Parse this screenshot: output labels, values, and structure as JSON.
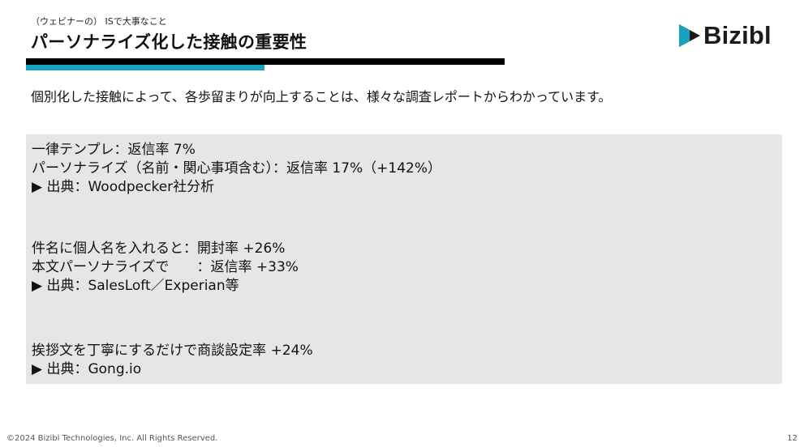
{
  "header": {
    "eyebrow": "（ウェビナーの） ISで大事なこと",
    "title": "パーソナライズ化した接触の重要性"
  },
  "logo": {
    "text": "Bizibl",
    "mark_icon": "bizibl-play-mark-icon",
    "accent_color": "#18a2bd",
    "mark_dark_color": "#1b1b1b"
  },
  "intro": "個別化した接触によって、各歩留まりが向上することは、様々な調査レポートからわかっています。",
  "panel": {
    "background": "#e6e6e6",
    "groups": [
      {
        "lines": [
          "一律テンプレ：返信率 7%",
          "パーソナライズ（名前・関心事項含む）：返信率 17%（+142%）",
          "▶ 出典：Woodpecker社分析"
        ]
      },
      {
        "lines": [
          "件名に個人名を入れると：開封率 +26%",
          "本文パーソナライズで　　：返信率 +33%",
          "▶ 出典：SalesLoft／Experian等"
        ]
      },
      {
        "lines": [
          "挨拶文を丁寧にするだけで商談設定率 +24%",
          "▶ 出典：Gong.io"
        ]
      }
    ]
  },
  "footer": {
    "copyright": "©2024 Bizibl Technologies, Inc. All Rights Reserved.",
    "page_number": "12"
  }
}
